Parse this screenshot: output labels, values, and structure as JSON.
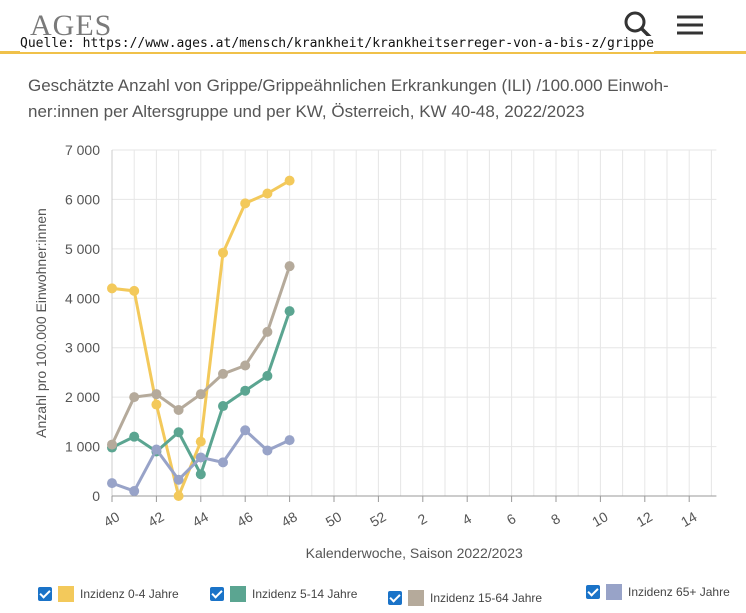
{
  "header": {
    "logo": "AGES",
    "source": "Quelle: https://www.ages.at/mensch/krankheit/krankheitserreger-von-a-bis-z/grippe"
  },
  "chart_data": {
    "type": "line",
    "title": "Geschätzte Anzahl von Grippe/Grippeähnlichen Erkrankungen (ILI) /100.000 Einwoh- ner:innen per Altersgruppe und per KW, Österreich, KW 40-48, 2022/2023",
    "xlabel": "Kalenderwoche, Saison 2022/2023",
    "ylabel": "Anzahl pro 100.000 Einwohner:innen",
    "x_categories": [
      "40",
      "41",
      "42",
      "43",
      "44",
      "45",
      "46",
      "47",
      "48",
      "49",
      "50",
      "51",
      "52",
      "1",
      "2",
      "3",
      "4",
      "5",
      "6",
      "7",
      "8",
      "9",
      "10",
      "11",
      "12",
      "13",
      "14",
      "15"
    ],
    "x_tick_labels": [
      "40",
      "42",
      "44",
      "46",
      "48",
      "50",
      "52",
      "2",
      "4",
      "6",
      "8",
      "10",
      "12",
      "14"
    ],
    "y_ticks": [
      "0",
      "1 000",
      "2 000",
      "3 000",
      "4 000",
      "5 000",
      "6 000",
      "7 000"
    ],
    "ylim": [
      0,
      7000
    ],
    "grid": true,
    "legend_position": "bottom",
    "series": [
      {
        "name": "Inzidenz 0-4 Jahre",
        "color": "#f3c95b",
        "values": [
          4200,
          4150,
          1850,
          0,
          1100,
          4920,
          5920,
          6120,
          6380
        ]
      },
      {
        "name": "Inzidenz 5-14 Jahre",
        "color": "#5ba591",
        "values": [
          980,
          1200,
          900,
          1290,
          440,
          1820,
          2130,
          2430,
          3740
        ]
      },
      {
        "name": "Inzidenz 15-64 Jahre",
        "color": "#b5aa9b",
        "values": [
          1040,
          2000,
          2060,
          1740,
          2060,
          2470,
          2640,
          3320,
          4650
        ]
      },
      {
        "name": "Inzidenz 65+ Jahre",
        "color": "#98a3c8",
        "values": [
          260,
          100,
          940,
          330,
          780,
          680,
          1330,
          920,
          1130
        ]
      }
    ]
  }
}
